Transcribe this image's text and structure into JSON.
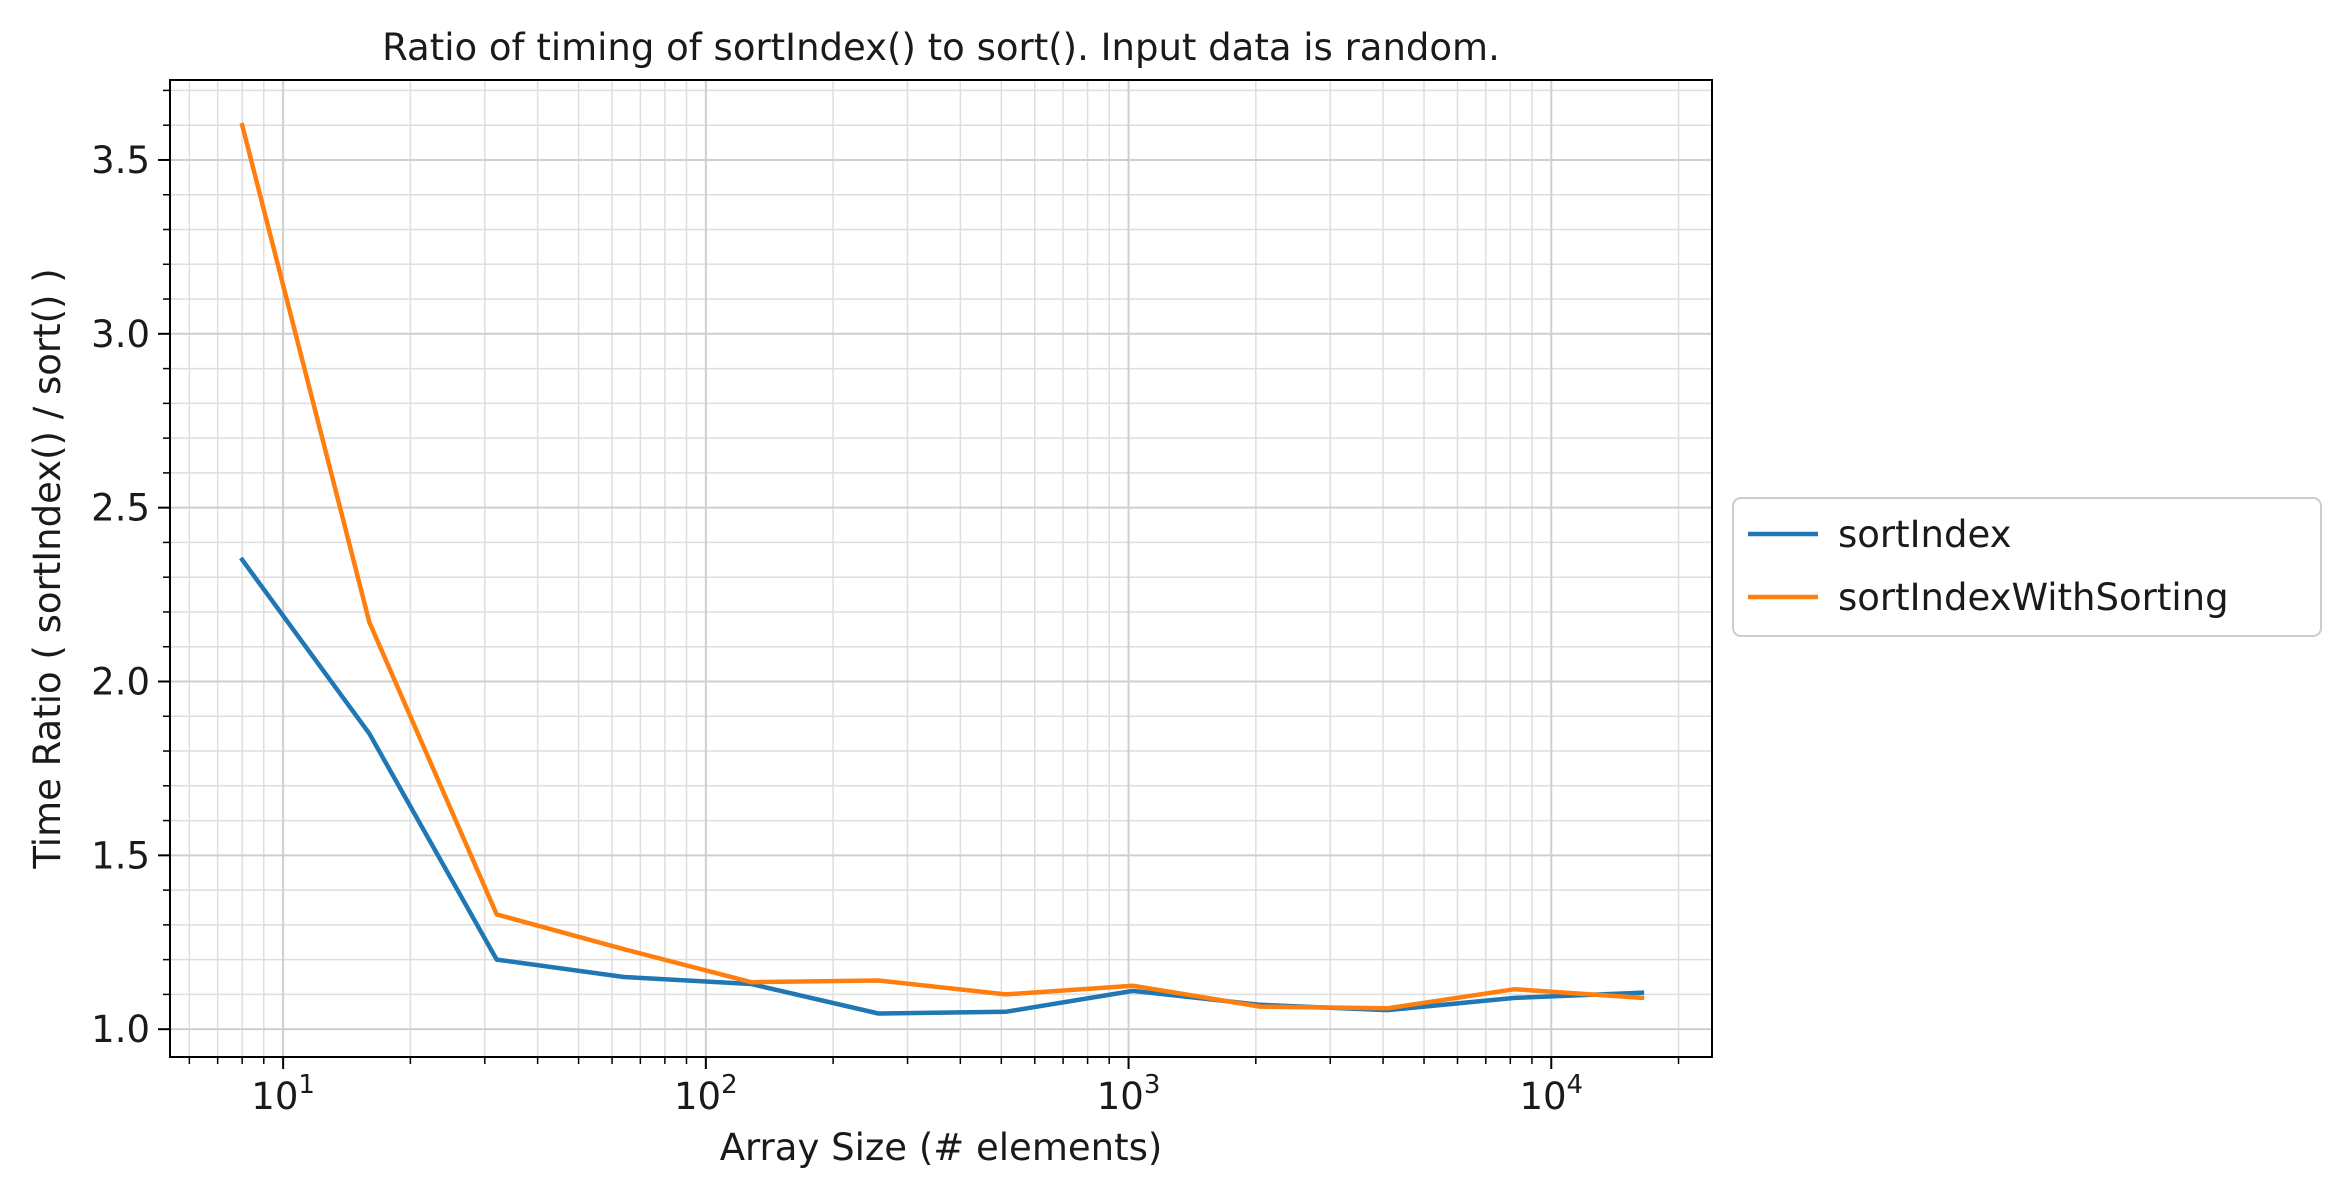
{
  "chart_data": {
    "type": "line",
    "title": "Ratio of timing of sortIndex() to sort(). Input data is random.",
    "xlabel": "Array Size (# elements)",
    "ylabel": "Time Ratio ( sortIndex() / sort() )",
    "xscale": "log",
    "xlim": [
      5.4,
      24000
    ],
    "ylim": [
      0.92,
      3.73
    ],
    "x_ticks": [
      {
        "value": 10,
        "base": "10",
        "exp": "1"
      },
      {
        "value": 100,
        "base": "10",
        "exp": "2"
      },
      {
        "value": 1000,
        "base": "10",
        "exp": "3"
      },
      {
        "value": 10000,
        "base": "10",
        "exp": "4"
      }
    ],
    "y_ticks": [
      {
        "value": 1.0,
        "label": "1.0"
      },
      {
        "value": 1.5,
        "label": "1.5"
      },
      {
        "value": 2.0,
        "label": "2.0"
      },
      {
        "value": 2.5,
        "label": "2.5"
      },
      {
        "value": 3.0,
        "label": "3.0"
      },
      {
        "value": 3.5,
        "label": "3.5"
      }
    ],
    "grid": true,
    "minor_grid": true,
    "legend_position": "outside-right",
    "x": [
      8,
      16,
      32,
      64,
      128,
      256,
      512,
      1024,
      2048,
      4096,
      8192,
      16384
    ],
    "series": [
      {
        "name": "sortIndex",
        "color": "#1f77b4",
        "values": [
          2.35,
          1.85,
          1.2,
          1.15,
          1.13,
          1.045,
          1.05,
          1.11,
          1.07,
          1.055,
          1.09,
          1.105
        ]
      },
      {
        "name": "sortIndexWithSorting",
        "color": "#ff7f0e",
        "values": [
          3.6,
          2.17,
          1.33,
          1.23,
          1.135,
          1.14,
          1.1,
          1.125,
          1.065,
          1.06,
          1.115,
          1.09
        ]
      }
    ]
  }
}
